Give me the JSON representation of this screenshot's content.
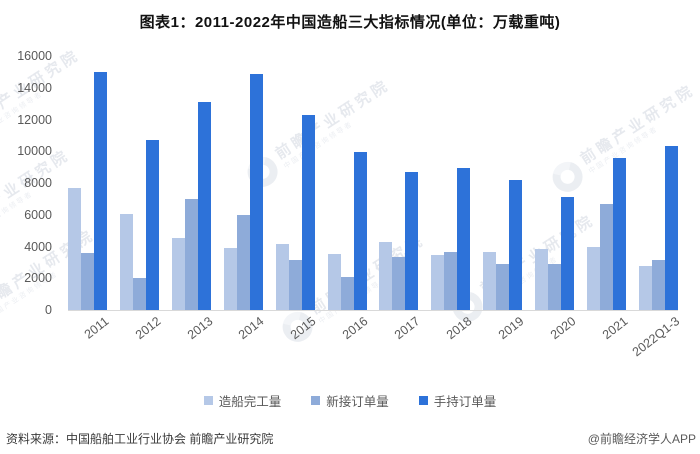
{
  "chart_data": {
    "type": "bar",
    "title": "图表1：2011-2022年中国造船三大指标情况(单位：万载重吨)",
    "categories": [
      "2011",
      "2012",
      "2013",
      "2014",
      "2015",
      "2016",
      "2017",
      "2018",
      "2019",
      "2020",
      "2021",
      "2022Q1-3"
    ],
    "series": [
      {
        "name": "造船完工量",
        "color": "#B5C8E7",
        "values": [
          7665,
          6021,
          4534,
          3905,
          4184,
          3532,
          4268,
          3458,
          3672,
          3853,
          3970,
          2780
        ]
      },
      {
        "name": "新接订单量",
        "color": "#8EABD9",
        "values": [
          3622,
          2041,
          6984,
          5995,
          3126,
          2107,
          3373,
          3667,
          2907,
          2893,
          6708,
          3165
        ]
      },
      {
        "name": "手持订单量",
        "color": "#2D72D9",
        "values": [
          14991,
          10695,
          13100,
          14886,
          12304,
          9961,
          8723,
          8931,
          8166,
          7111,
          9584,
          10305
        ]
      }
    ],
    "xlabel": "",
    "ylabel": "",
    "ylim": [
      0,
      16000
    ],
    "yticks": [
      0,
      2000,
      4000,
      6000,
      8000,
      10000,
      12000,
      14000,
      16000
    ],
    "grid": false,
    "legend_position": "bottom"
  },
  "watermark": {
    "text": "前瞻产业研究院",
    "subtext": "中国产业咨询领导者"
  },
  "footer": {
    "source": "资料来源：中国船舶工业行业协会 前瞻产业研究院",
    "credit": "@前瞻经济学人APP"
  }
}
